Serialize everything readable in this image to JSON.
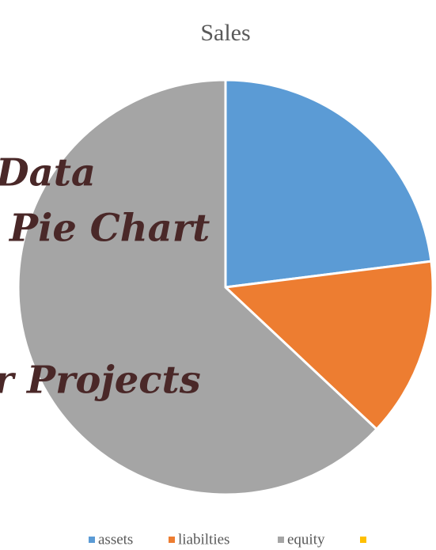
{
  "chart_data": {
    "type": "pie",
    "title": "Sales",
    "categories": [
      "assets",
      "liabilties",
      "equity",
      null
    ],
    "values": [
      23,
      14,
      63,
      0
    ],
    "colors": [
      "#5b9bd5",
      "#ed7d31",
      "#a5a5a5",
      "#ffc000"
    ],
    "legend": "bottom",
    "annotations": [
      "Data",
      "Pie Chart",
      "r Projects"
    ]
  }
}
